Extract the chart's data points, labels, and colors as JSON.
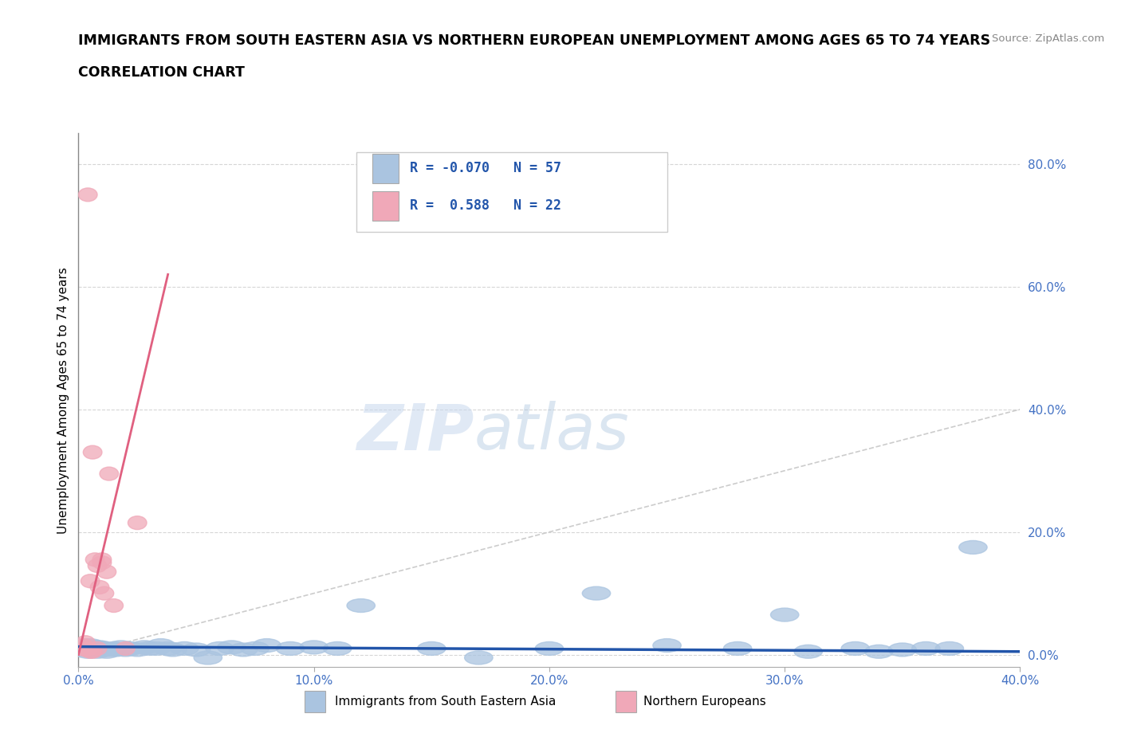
{
  "title": "IMMIGRANTS FROM SOUTH EASTERN ASIA VS NORTHERN EUROPEAN UNEMPLOYMENT AMONG AGES 65 TO 74 YEARS",
  "subtitle": "CORRELATION CHART",
  "source": "Source: ZipAtlas.com",
  "ylabel": "Unemployment Among Ages 65 to 74 years",
  "watermark_zip": "ZIP",
  "watermark_atlas": "atlas",
  "legend_label_blue": "Immigrants from South Eastern Asia",
  "legend_label_pink": "Northern Europeans",
  "R_blue": -0.07,
  "N_blue": 57,
  "R_pink": 0.588,
  "N_pink": 22,
  "blue_color": "#aac4e0",
  "pink_color": "#f0a8b8",
  "blue_line_color": "#2255aa",
  "pink_line_color": "#e06080",
  "diagonal_color": "#cccccc",
  "xlim": [
    0.0,
    0.4
  ],
  "ylim": [
    -0.02,
    0.85
  ],
  "yticks": [
    0.0,
    0.2,
    0.4,
    0.6,
    0.8
  ],
  "xticks": [
    0.0,
    0.1,
    0.2,
    0.3,
    0.4
  ],
  "blue_x": [
    0.001,
    0.002,
    0.003,
    0.003,
    0.004,
    0.005,
    0.005,
    0.006,
    0.006,
    0.007,
    0.007,
    0.008,
    0.008,
    0.009,
    0.01,
    0.01,
    0.011,
    0.012,
    0.013,
    0.015,
    0.016,
    0.018,
    0.02,
    0.022,
    0.025,
    0.028,
    0.03,
    0.033,
    0.035,
    0.038,
    0.04,
    0.045,
    0.05,
    0.055,
    0.06,
    0.065,
    0.07,
    0.075,
    0.08,
    0.09,
    0.1,
    0.11,
    0.12,
    0.15,
    0.17,
    0.2,
    0.22,
    0.25,
    0.28,
    0.3,
    0.31,
    0.33,
    0.34,
    0.35,
    0.36,
    0.37,
    0.38
  ],
  "blue_y": [
    0.01,
    0.01,
    0.008,
    0.015,
    0.005,
    0.01,
    0.015,
    0.008,
    0.01,
    0.008,
    0.012,
    0.01,
    0.005,
    0.012,
    0.01,
    0.008,
    0.01,
    0.005,
    0.008,
    0.01,
    0.008,
    0.012,
    0.008,
    0.01,
    0.008,
    0.012,
    0.01,
    0.01,
    0.015,
    0.01,
    0.008,
    0.01,
    0.008,
    -0.005,
    0.01,
    0.012,
    0.008,
    0.01,
    0.015,
    0.01,
    0.012,
    0.01,
    0.08,
    0.01,
    -0.005,
    0.01,
    0.1,
    0.015,
    0.01,
    0.065,
    0.005,
    0.01,
    0.005,
    0.008,
    0.01,
    0.01,
    0.175
  ],
  "pink_x": [
    0.001,
    0.002,
    0.003,
    0.003,
    0.004,
    0.004,
    0.005,
    0.005,
    0.006,
    0.006,
    0.007,
    0.008,
    0.008,
    0.009,
    0.01,
    0.01,
    0.011,
    0.012,
    0.013,
    0.015,
    0.02,
    0.025
  ],
  "pink_y": [
    0.01,
    0.015,
    0.008,
    0.02,
    0.75,
    0.01,
    0.12,
    0.005,
    0.33,
    0.005,
    0.155,
    0.145,
    0.01,
    0.11,
    0.15,
    0.155,
    0.1,
    0.135,
    0.295,
    0.08,
    0.01,
    0.215
  ],
  "pink_line_x": [
    0.0,
    0.038
  ],
  "pink_line_y": [
    0.0,
    0.62
  ],
  "blue_line_x": [
    0.0,
    0.4
  ],
  "blue_line_y": [
    0.013,
    0.005
  ]
}
